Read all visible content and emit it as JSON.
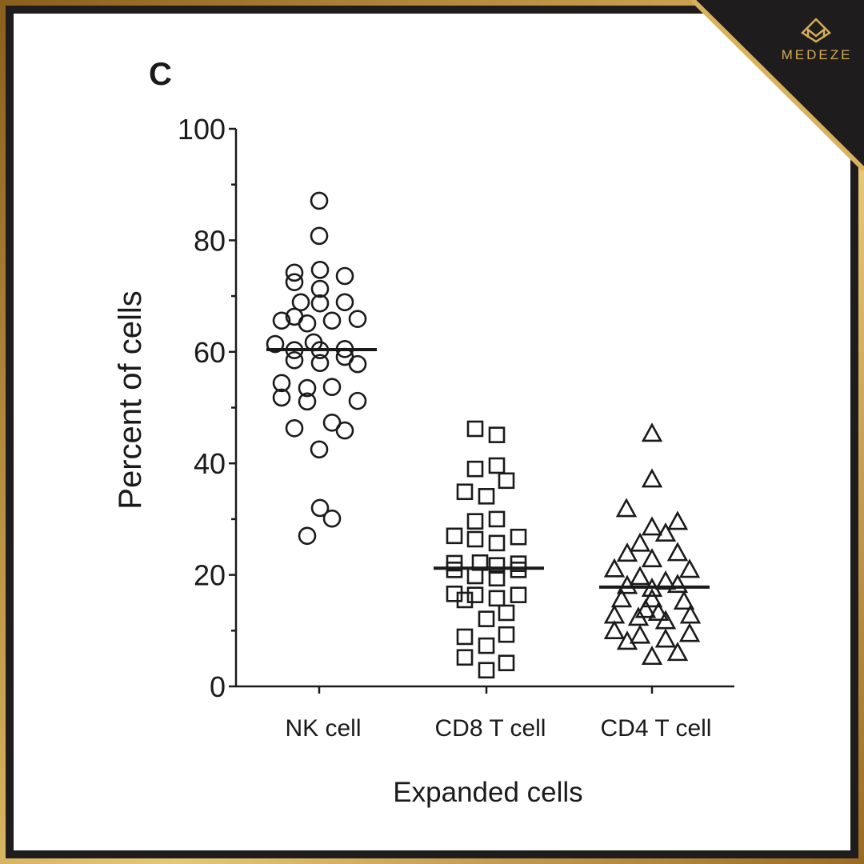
{
  "panel_label": "C",
  "brand": {
    "name": "MEDEZE",
    "logo_icon": "medeze-diamond-m-logo",
    "colors": {
      "gold": "#d4ac5a",
      "dark": "#1e1c1d"
    }
  },
  "chart_data": {
    "type": "scatter",
    "subtype": "dot-plot with mean line",
    "title": "",
    "xlabel": "Expanded cells",
    "ylabel": "Percent of cells",
    "ylim": [
      0,
      100
    ],
    "yticks": [
      "0",
      "20",
      "40",
      "60",
      "80",
      "100"
    ],
    "grid": false,
    "categories": [
      "NK cell",
      "CD8 T cell",
      "CD4 T cell"
    ],
    "series": [
      {
        "category": "NK cell",
        "marker": "open-circle",
        "mean": 60.4,
        "values": [
          87.1,
          80.8,
          74.2,
          72.5,
          74.7,
          73.6,
          71.3,
          68.9,
          68.7,
          68.9,
          65.6,
          66.3,
          65.1,
          65.6,
          65.9,
          61.4,
          61.7,
          60.3,
          60.3,
          60.5,
          58.5,
          58.0,
          59.1,
          57.8,
          54.4,
          53.5,
          53.7,
          51.8,
          51.1,
          51.2,
          47.3,
          46.3,
          45.9,
          42.5,
          32.0,
          30.1,
          27.0
        ]
      },
      {
        "category": "CD8 T cell",
        "marker": "open-square",
        "mean": 21.2,
        "values": [
          46.2,
          45.1,
          39.0,
          39.6,
          36.9,
          34.9,
          34.1,
          29.6,
          30.0,
          27.0,
          26.4,
          25.7,
          26.8,
          22.1,
          22.2,
          21.7,
          22.0,
          20.9,
          19.8,
          19.4,
          20.9,
          16.6,
          15.5,
          16.4,
          15.8,
          16.4,
          13.2,
          12.1,
          8.9,
          7.3,
          9.3,
          5.2,
          2.9,
          4.2
        ]
      },
      {
        "category": "CD4 T cell",
        "marker": "open-triangle",
        "mean": 17.8,
        "values": [
          45.2,
          37.0,
          31.7,
          29.4,
          28.4,
          27.3,
          25.5,
          23.8,
          23.7,
          22.7,
          20.8,
          20.9,
          19.5,
          18.7,
          17.9,
          18.1,
          17.4,
          15.5,
          15.5,
          15.1,
          13.6,
          13.1,
          12.6,
          12.6,
          12.2,
          11.6,
          9.8,
          9.0,
          9.3,
          7.9,
          8.3,
          5.2,
          5.9
        ]
      }
    ]
  }
}
